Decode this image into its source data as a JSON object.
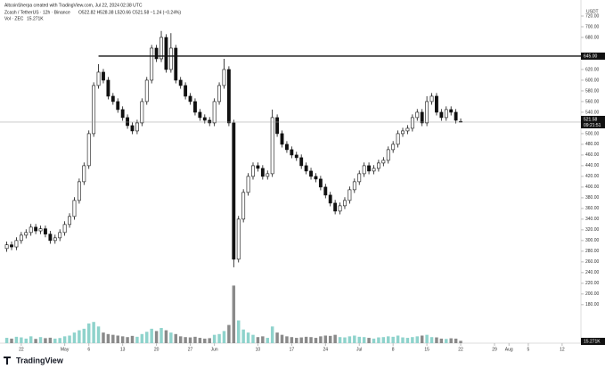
{
  "header": {
    "author": "AltcoinSherpa created with TradingView.com, Jul 22, 2024 02:38 UTC",
    "symbol": "Zcash / TetherUS · 12h · Binance",
    "ohlc": "O522.82 H528.38 L520.66 C521.58 −1.24 (−0.24%)",
    "volume_title": "Vol · ZEC",
    "volume_value": "15.271K",
    "currency": "USDT",
    "logo": "TradingView"
  },
  "chart_data": {
    "type": "candlestick",
    "color_up": "#ffffff",
    "color_down": "#111111",
    "volume_color_up": "#8fd3cc",
    "volume_color_down": "#8a8a8a",
    "x": [
      -12,
      -11,
      -10,
      -9,
      -8,
      -7,
      -6,
      -5,
      -4,
      -3,
      -2,
      -1,
      0,
      1,
      2,
      3,
      4,
      5,
      6,
      7,
      8,
      9,
      10,
      11,
      12,
      13,
      14,
      15,
      16,
      17,
      18,
      19,
      20,
      21,
      22,
      23,
      24,
      25,
      26,
      27,
      28,
      29,
      30,
      31,
      32,
      33,
      34,
      35,
      36,
      37,
      38,
      39,
      40,
      41,
      42,
      43,
      44,
      45,
      46,
      47,
      48,
      49,
      50,
      51,
      52,
      53,
      54,
      55,
      56,
      57,
      58,
      59,
      60,
      61,
      62,
      63,
      64,
      65,
      66,
      67,
      68,
      69,
      70,
      71,
      72,
      73,
      74,
      75,
      76,
      77,
      78,
      79,
      80,
      81,
      82
    ],
    "open": [
      285,
      292,
      288,
      300,
      310,
      315,
      325,
      318,
      322,
      312,
      300,
      305,
      315,
      330,
      345,
      375,
      410,
      440,
      500,
      590,
      615,
      600,
      570,
      560,
      545,
      530,
      515,
      505,
      520,
      560,
      600,
      660,
      640,
      680,
      620,
      660,
      600,
      590,
      570,
      560,
      540,
      530,
      525,
      520,
      560,
      590,
      620,
      520,
      265,
      340,
      390,
      420,
      440,
      435,
      420,
      425,
      530,
      500,
      480,
      470,
      460,
      455,
      440,
      430,
      420,
      415,
      400,
      385,
      370,
      355,
      365,
      375,
      395,
      410,
      425,
      440,
      430,
      435,
      445,
      450,
      470,
      480,
      500,
      505,
      510,
      530,
      540,
      520,
      560,
      570,
      540,
      530,
      545,
      540,
      522.82
    ],
    "high": [
      298,
      298,
      306,
      316,
      321,
      331,
      331,
      328,
      328,
      318,
      311,
      321,
      336,
      351,
      381,
      416,
      446,
      506,
      596,
      630,
      621,
      606,
      576,
      566,
      551,
      536,
      521,
      526,
      566,
      606,
      666,
      666,
      692,
      686,
      688,
      666,
      606,
      596,
      576,
      566,
      546,
      536,
      531,
      566,
      596,
      640,
      626,
      526,
      346,
      396,
      426,
      446,
      446,
      441,
      431,
      545,
      536,
      506,
      486,
      476,
      466,
      461,
      446,
      436,
      426,
      421,
      406,
      391,
      376,
      371,
      381,
      401,
      416,
      431,
      446,
      446,
      441,
      451,
      456,
      476,
      486,
      506,
      511,
      516,
      536,
      546,
      546,
      570,
      576,
      576,
      546,
      551,
      551,
      546,
      528.38
    ],
    "low": [
      279,
      282,
      282,
      294,
      304,
      309,
      312,
      312,
      306,
      294,
      294,
      299,
      309,
      324,
      339,
      369,
      404,
      434,
      494,
      584,
      594,
      564,
      554,
      539,
      524,
      509,
      499,
      499,
      514,
      554,
      594,
      634,
      634,
      614,
      614,
      594,
      584,
      564,
      554,
      534,
      524,
      519,
      514,
      514,
      554,
      584,
      514,
      250,
      259,
      334,
      384,
      414,
      429,
      414,
      414,
      419,
      494,
      474,
      464,
      454,
      449,
      434,
      424,
      414,
      409,
      394,
      379,
      364,
      349,
      349,
      359,
      369,
      389,
      404,
      419,
      424,
      424,
      429,
      439,
      444,
      464,
      474,
      494,
      499,
      504,
      524,
      514,
      514,
      554,
      534,
      524,
      524,
      534,
      519,
      520.66
    ],
    "close": [
      292,
      288,
      300,
      310,
      315,
      325,
      318,
      322,
      312,
      300,
      305,
      315,
      330,
      345,
      375,
      410,
      440,
      500,
      590,
      615,
      600,
      570,
      560,
      545,
      530,
      515,
      505,
      520,
      560,
      600,
      660,
      640,
      680,
      620,
      660,
      600,
      590,
      570,
      560,
      540,
      530,
      525,
      520,
      560,
      590,
      620,
      520,
      265,
      340,
      390,
      420,
      440,
      435,
      420,
      425,
      530,
      500,
      480,
      470,
      460,
      455,
      440,
      430,
      420,
      415,
      400,
      385,
      370,
      355,
      365,
      375,
      395,
      410,
      425,
      440,
      430,
      435,
      445,
      450,
      470,
      480,
      500,
      505,
      510,
      530,
      540,
      520,
      560,
      570,
      540,
      530,
      545,
      540,
      525,
      521.58
    ],
    "volume": [
      35,
      30,
      42,
      38,
      30,
      45,
      28,
      40,
      33,
      36,
      30,
      34,
      45,
      50,
      70,
      85,
      95,
      130,
      140,
      110,
      70,
      60,
      55,
      50,
      45,
      40,
      48,
      42,
      60,
      75,
      95,
      80,
      100,
      85,
      70,
      60,
      45,
      40,
      38,
      42,
      35,
      30,
      33,
      55,
      60,
      80,
      120,
      380,
      150,
      90,
      70,
      55,
      40,
      45,
      35,
      110,
      70,
      55,
      45,
      40,
      35,
      38,
      42,
      40,
      35,
      45,
      50,
      48,
      55,
      40,
      38,
      45,
      50,
      42,
      40,
      35,
      30,
      38,
      40,
      45,
      42,
      50,
      38,
      35,
      40,
      45,
      50,
      55,
      40,
      38,
      30,
      28,
      32,
      30,
      15.271
    ],
    "xlim": [
      -13.4,
      106.9
    ],
    "ylim": [
      108,
      750
    ],
    "yticks": [
      {
        "value": 180,
        "label": "180.00"
      },
      {
        "value": 200,
        "label": "200.00"
      },
      {
        "value": 220,
        "label": "220.00"
      },
      {
        "value": 240,
        "label": "240.00"
      },
      {
        "value": 260,
        "label": "260.00"
      },
      {
        "value": 280,
        "label": "280.00"
      },
      {
        "value": 300,
        "label": "300.00"
      },
      {
        "value": 320,
        "label": "320.00"
      },
      {
        "value": 340,
        "label": "340.00"
      },
      {
        "value": 360,
        "label": "360.00"
      },
      {
        "value": 380,
        "label": "380.00"
      },
      {
        "value": 400,
        "label": "400.00"
      },
      {
        "value": 420,
        "label": "420.00"
      },
      {
        "value": 440,
        "label": "440.00"
      },
      {
        "value": 460,
        "label": "460.00"
      },
      {
        "value": 480,
        "label": "480.00"
      },
      {
        "value": 500,
        "label": "500.00"
      },
      {
        "value": 540,
        "label": "540.00"
      },
      {
        "value": 560,
        "label": "560.00"
      },
      {
        "value": 580,
        "label": "580.00"
      },
      {
        "value": 600,
        "label": "600.00"
      },
      {
        "value": 620,
        "label": "620.00"
      },
      {
        "value": 680,
        "label": "680.00"
      },
      {
        "value": 700,
        "label": "700.00"
      },
      {
        "value": 720,
        "label": "720.00"
      }
    ],
    "xticks": [
      {
        "value": -9,
        "label": "22"
      },
      {
        "value": 0,
        "label": "May"
      },
      {
        "value": 5,
        "label": "6"
      },
      {
        "value": 12,
        "label": "13"
      },
      {
        "value": 19,
        "label": "20"
      },
      {
        "value": 26,
        "label": "27"
      },
      {
        "value": 31,
        "label": "Jun"
      },
      {
        "value": 40,
        "label": "10"
      },
      {
        "value": 47,
        "label": "17"
      },
      {
        "value": 54,
        "label": "24"
      },
      {
        "value": 61,
        "label": "Jul"
      },
      {
        "value": 68,
        "label": "8"
      },
      {
        "value": 75,
        "label": "15"
      },
      {
        "value": 82,
        "label": "22"
      },
      {
        "value": 89,
        "label": "29"
      },
      {
        "value": 92,
        "label": "Aug"
      },
      {
        "value": 96,
        "label": "5"
      },
      {
        "value": 103,
        "label": "12"
      }
    ],
    "hline": {
      "value": 645,
      "label": "645.00",
      "start": 7
    },
    "last_price": {
      "value": 521.58,
      "label": "521.58",
      "countdown": "09:21:51"
    }
  }
}
